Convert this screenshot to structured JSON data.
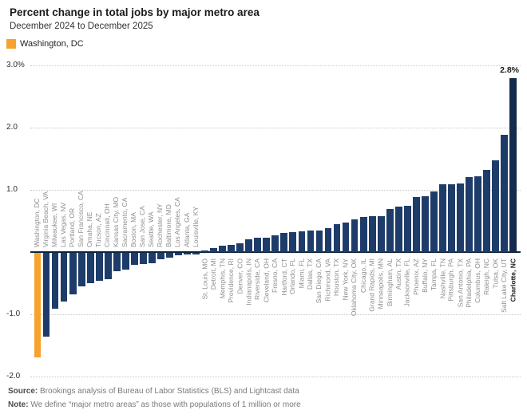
{
  "header": {
    "title": "Percent change in total jobs by major metro area",
    "subtitle": "December 2024 to December 2025"
  },
  "legend": {
    "label": "Washington, DC",
    "color": "#F6A22C"
  },
  "footer": {
    "source_label": "Source:",
    "source_text": " Brookings analysis of Bureau of Labor Statistics (BLS) and Lightcast data",
    "note_label": "Note:",
    "note_text": " We define “major metro areas” as those with populations of 1 million or more"
  },
  "chart_data": {
    "type": "bar",
    "title": "Percent change in total jobs by major metro area",
    "subtitle": "December 2024 to December 2025",
    "unit": "%",
    "ylim": [
      -2.0,
      3.0
    ],
    "grid": "horizontal-dotted",
    "legend_position": "top-left",
    "yticks": [
      {
        "label": "3.0%",
        "value": 3.0
      },
      {
        "label": "2.0",
        "value": 2.0
      },
      {
        "label": "1.0",
        "value": 1.0
      },
      {
        "label": "-1.0",
        "value": -1.0
      },
      {
        "label": "-2.0",
        "value": -2.0
      }
    ],
    "bar_color": "#1E3C69",
    "highlight": {
      "label": "Washington, DC",
      "color": "#F6A22C"
    },
    "emphasis_label": "Charlotte, NC",
    "emphasis_bar_color": "#142B4D",
    "annotation": {
      "text": "2.8%",
      "target": "Charlotte, NC"
    },
    "categories": [
      "Washington, DC",
      "Virginia Beach, VA",
      "Milwaukee, WI",
      "Las Vegas, NV",
      "Portland, OR",
      "San Francisco, CA",
      "Omaha, NE",
      "Tucson, AZ",
      "Cincinnati, OH",
      "Kansas City, MO",
      "Sacramento, CA",
      "Boston, MA",
      "San Jose, CA",
      "Seattle, WA",
      "Rochester, NY",
      "Baltimore, MD",
      "Los Angeles, CA",
      "Atlanta, GA",
      "Louisville, KY",
      "St. Louis, MO",
      "Detroit, MI",
      "Memphis, TN",
      "Providence, RI",
      "Denver, CO",
      "Indianapolis, IN",
      "Riverside, CA",
      "Cleveland, OH",
      "Fresno, CA",
      "Hartford, CT",
      "Orlando, FL",
      "Miami, FL",
      "Dallas, TX",
      "San Diego, CA",
      "Richmond, VA",
      "Houston, TX",
      "New York, NY",
      "Oklahoma City, OK",
      "Chicago, IL",
      "Grand Rapids, MI",
      "Minneapolis, MN",
      "Birmingham, AL",
      "Austin, TX",
      "Jacksonville, FL",
      "Phoenix, AZ",
      "Buffalo, NY",
      "Tampa, FL",
      "Nashville, TN",
      "Pittsburgh, PA",
      "San Antonio, TX",
      "Philadelphia, PA",
      "Columbus, OH",
      "Raleigh, NC",
      "Tulsa, OK",
      "Salt Lake City, UT",
      "Charlotte, NC"
    ],
    "values": [
      -1.68,
      -1.35,
      -0.9,
      -0.78,
      -0.67,
      -0.54,
      -0.49,
      -0.45,
      -0.42,
      -0.29,
      -0.27,
      -0.19,
      -0.18,
      -0.17,
      -0.1,
      -0.08,
      -0.04,
      -0.03,
      -0.02,
      0.02,
      0.07,
      0.1,
      0.11,
      0.14,
      0.2,
      0.23,
      0.23,
      0.27,
      0.31,
      0.32,
      0.33,
      0.35,
      0.35,
      0.39,
      0.45,
      0.48,
      0.52,
      0.56,
      0.58,
      0.58,
      0.69,
      0.73,
      0.74,
      0.89,
      0.9,
      0.98,
      1.09,
      1.09,
      1.1,
      1.21,
      1.22,
      1.32,
      1.48,
      1.89,
      2.8
    ]
  }
}
